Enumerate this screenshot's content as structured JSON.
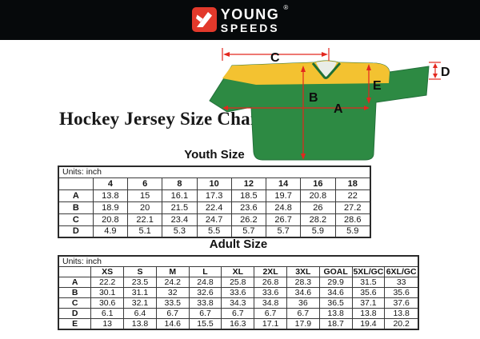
{
  "brand": {
    "name_top": "YOUNG",
    "name_bottom": "SPEEDS",
    "registered": "®"
  },
  "title": "Hockey Jersey Size Chart",
  "diagram": {
    "label_a": "A",
    "label_b": "B",
    "label_c": "C",
    "label_d": "D",
    "label_e": "E"
  },
  "colors": {
    "topbar_black": "#06090b",
    "logo_red": "#e2392b",
    "jersey_green": "#2d8a43",
    "jersey_green_dark": "#1f7034",
    "yoke_yellow": "#f3c231",
    "arrow_red": "#e3271e"
  },
  "youth_table": {
    "title": "Youth Size",
    "units_label": "Units: inch",
    "columns": [
      "",
      "4",
      "6",
      "8",
      "10",
      "12",
      "14",
      "16",
      "18"
    ],
    "rows": [
      {
        "label": "A",
        "values": [
          "13.8",
          "15",
          "16.1",
          "17.3",
          "18.5",
          "19.7",
          "20.8",
          "22"
        ]
      },
      {
        "label": "B",
        "values": [
          "18.9",
          "20",
          "21.5",
          "22.4",
          "23.6",
          "24.8",
          "26",
          "27.2"
        ]
      },
      {
        "label": "C",
        "values": [
          "20.8",
          "22.1",
          "23.4",
          "24.7",
          "26.2",
          "26.7",
          "28.2",
          "28.6"
        ]
      },
      {
        "label": "D",
        "values": [
          "4.9",
          "5.1",
          "5.3",
          "5.5",
          "5.7",
          "5.7",
          "5.9",
          "5.9"
        ]
      }
    ]
  },
  "adult_table": {
    "title": "Adult Size",
    "units_label": "Units: inch",
    "columns": [
      "",
      "XS",
      "S",
      "M",
      "L",
      "XL",
      "2XL",
      "3XL",
      "GOAL",
      "5XL/GC",
      "6XL/GC"
    ],
    "rows": [
      {
        "label": "A",
        "values": [
          "22.2",
          "23.5",
          "24.2",
          "24.8",
          "25.8",
          "26.8",
          "28.3",
          "29.9",
          "31.5",
          "33"
        ]
      },
      {
        "label": "B",
        "values": [
          "30.1",
          "31.1",
          "32",
          "32.6",
          "33.6",
          "33.6",
          "34.6",
          "34.6",
          "35.6",
          "35.6"
        ]
      },
      {
        "label": "C",
        "values": [
          "30.6",
          "32.1",
          "33.5",
          "33.8",
          "34.3",
          "34.8",
          "36",
          "36.5",
          "37.1",
          "37.6"
        ]
      },
      {
        "label": "D",
        "values": [
          "6.1",
          "6.4",
          "6.7",
          "6.7",
          "6.7",
          "6.7",
          "6.7",
          "13.8",
          "13.8",
          "13.8"
        ]
      },
      {
        "label": "E",
        "values": [
          "13",
          "13.8",
          "14.6",
          "15.5",
          "16.3",
          "17.1",
          "17.9",
          "18.7",
          "19.4",
          "20.2"
        ]
      }
    ]
  }
}
